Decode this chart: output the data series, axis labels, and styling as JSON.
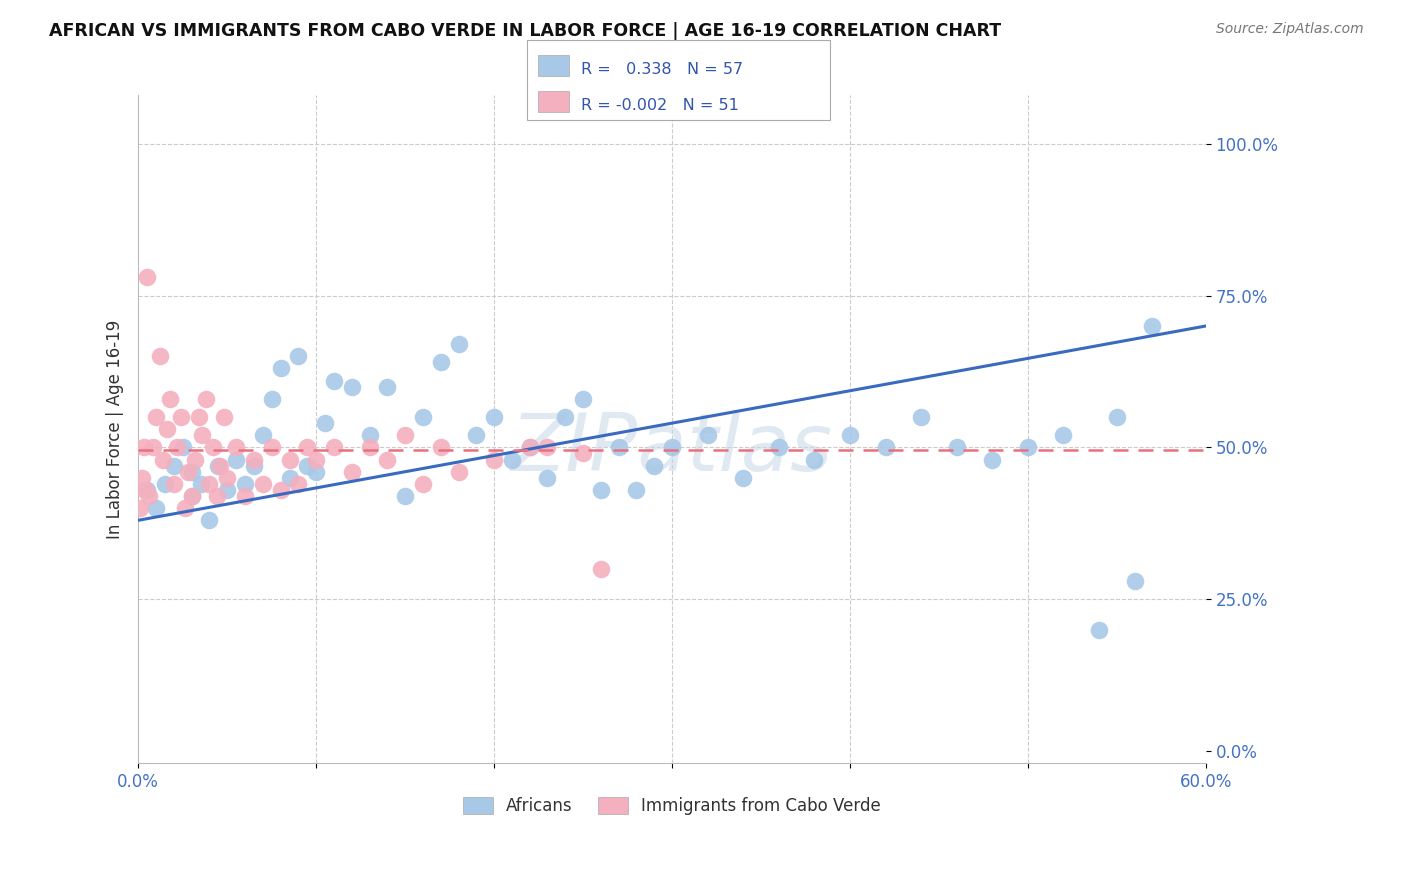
{
  "title": "AFRICAN VS IMMIGRANTS FROM CABO VERDE IN LABOR FORCE | AGE 16-19 CORRELATION CHART",
  "source": "Source: ZipAtlas.com",
  "ylabel": "In Labor Force | Age 16-19",
  "xlim": [
    0.0,
    0.6
  ],
  "ylim": [
    -0.02,
    1.08
  ],
  "yticks": [
    0.0,
    0.25,
    0.5,
    0.75,
    1.0
  ],
  "ytick_labels": [
    "0.0%",
    "25.0%",
    "50.0%",
    "75.0%",
    "100.0%"
  ],
  "xticks": [
    0.0,
    0.1,
    0.2,
    0.3,
    0.4,
    0.5,
    0.6
  ],
  "xtick_labels": [
    "0.0%",
    "",
    "",
    "",
    "",
    "",
    "60.0%"
  ],
  "R_african": 0.338,
  "N_african": 57,
  "R_caboverde": -0.002,
  "N_caboverde": 51,
  "african_color": "#a8c8e8",
  "caboverde_color": "#f4b0be",
  "line_african_color": "#3a6abf",
  "line_caboverde_color": "#e8717f",
  "watermark": "ZIPatlas",
  "background_color": "#ffffff",
  "grid_color": "#cccccc",
  "africans_x": [
    0.005,
    0.01,
    0.015,
    0.02,
    0.025,
    0.03,
    0.03,
    0.035,
    0.04,
    0.045,
    0.05,
    0.055,
    0.06,
    0.065,
    0.07,
    0.075,
    0.08,
    0.085,
    0.09,
    0.095,
    0.1,
    0.105,
    0.11,
    0.12,
    0.13,
    0.14,
    0.15,
    0.16,
    0.17,
    0.18,
    0.19,
    0.2,
    0.21,
    0.22,
    0.23,
    0.24,
    0.25,
    0.26,
    0.27,
    0.28,
    0.29,
    0.3,
    0.32,
    0.34,
    0.36,
    0.38,
    0.4,
    0.42,
    0.44,
    0.46,
    0.48,
    0.5,
    0.52,
    0.54,
    0.55,
    0.56,
    0.57
  ],
  "africans_y": [
    0.43,
    0.4,
    0.44,
    0.47,
    0.5,
    0.42,
    0.46,
    0.44,
    0.38,
    0.47,
    0.43,
    0.48,
    0.44,
    0.47,
    0.52,
    0.58,
    0.63,
    0.45,
    0.65,
    0.47,
    0.46,
    0.54,
    0.61,
    0.6,
    0.52,
    0.6,
    0.42,
    0.55,
    0.64,
    0.67,
    0.52,
    0.55,
    0.48,
    0.5,
    0.45,
    0.55,
    0.58,
    0.43,
    0.5,
    0.43,
    0.47,
    0.5,
    0.52,
    0.45,
    0.5,
    0.48,
    0.52,
    0.5,
    0.55,
    0.5,
    0.48,
    0.5,
    0.52,
    0.2,
    0.55,
    0.28,
    0.7
  ],
  "caboverde_x": [
    0.001,
    0.002,
    0.003,
    0.004,
    0.005,
    0.006,
    0.008,
    0.01,
    0.012,
    0.014,
    0.016,
    0.018,
    0.02,
    0.022,
    0.024,
    0.026,
    0.028,
    0.03,
    0.032,
    0.034,
    0.036,
    0.038,
    0.04,
    0.042,
    0.044,
    0.046,
    0.048,
    0.05,
    0.055,
    0.06,
    0.065,
    0.07,
    0.075,
    0.08,
    0.085,
    0.09,
    0.095,
    0.1,
    0.11,
    0.12,
    0.13,
    0.14,
    0.15,
    0.16,
    0.17,
    0.18,
    0.2,
    0.22,
    0.23,
    0.25,
    0.26
  ],
  "caboverde_y": [
    0.4,
    0.45,
    0.5,
    0.43,
    0.78,
    0.42,
    0.5,
    0.55,
    0.65,
    0.48,
    0.53,
    0.58,
    0.44,
    0.5,
    0.55,
    0.4,
    0.46,
    0.42,
    0.48,
    0.55,
    0.52,
    0.58,
    0.44,
    0.5,
    0.42,
    0.47,
    0.55,
    0.45,
    0.5,
    0.42,
    0.48,
    0.44,
    0.5,
    0.43,
    0.48,
    0.44,
    0.5,
    0.48,
    0.5,
    0.46,
    0.5,
    0.48,
    0.52,
    0.44,
    0.5,
    0.46,
    0.48,
    0.5,
    0.5,
    0.49,
    0.3
  ],
  "af_line_x0": 0.0,
  "af_line_x1": 0.6,
  "af_line_y0": 0.38,
  "af_line_y1": 0.7,
  "cv_line_x0": 0.0,
  "cv_line_x1": 0.6,
  "cv_line_y0": 0.495,
  "cv_line_y1": 0.495
}
